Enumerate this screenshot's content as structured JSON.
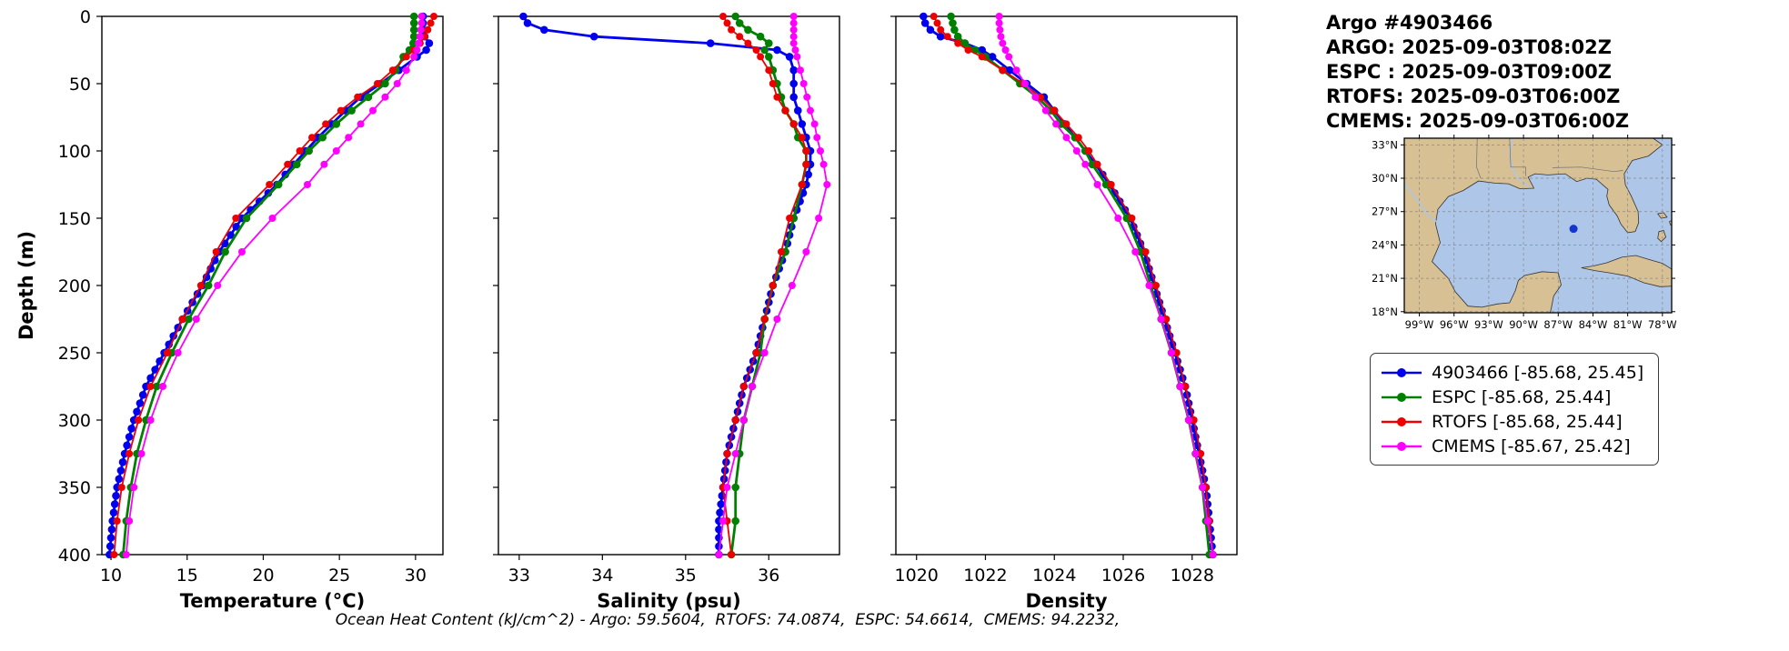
{
  "title_block": {
    "lines": [
      "Argo #4903466",
      "ARGO: 2025-09-03T08:02Z",
      "ESPC : 2025-09-03T09:00Z",
      "RTOFS: 2025-09-03T06:00Z",
      "CMEMS: 2025-09-03T06:00Z"
    ]
  },
  "caption": "Ocean Heat Content (kJ/cm^2) - Argo: 59.5604,  RTOFS: 74.0874,  ESPC: 54.6614,  CMEMS: 94.2232,",
  "legend": {
    "items": [
      {
        "label": "4903466 [-85.68, 25.45]",
        "color": "#0000ee"
      },
      {
        "label": "ESPC [-85.68, 25.44]",
        "color": "#008000"
      },
      {
        "label": "RTOFS [-85.68, 25.44]",
        "color": "#ee0000"
      },
      {
        "label": "CMEMS [-85.67, 25.42]",
        "color": "#ff00ff"
      }
    ]
  },
  "chart_data": {
    "type": "line",
    "orientation": "depth-profile",
    "depth_axis": {
      "label": "Depth (m)",
      "range": [
        0,
        400
      ],
      "ticks": [
        0,
        50,
        100,
        150,
        200,
        250,
        300,
        350,
        400
      ]
    },
    "depths": [
      0,
      5,
      10,
      15,
      20,
      25,
      30,
      40,
      50,
      60,
      70,
      80,
      90,
      100,
      110,
      125,
      150,
      175,
      200,
      225,
      250,
      275,
      300,
      325,
      350,
      375,
      400
    ],
    "series_meta": [
      {
        "name": "4903466",
        "color": "#0000ee",
        "lw": 2.8,
        "r": 4.3,
        "dense": true
      },
      {
        "name": "ESPC",
        "color": "#008000",
        "lw": 2.8,
        "r": 4.3,
        "dense": false
      },
      {
        "name": "RTOFS",
        "color": "#ee0000",
        "lw": 1.8,
        "r": 4.0,
        "dense": false
      },
      {
        "name": "CMEMS",
        "color": "#ff00ff",
        "lw": 1.8,
        "r": 4.0,
        "dense": false
      }
    ],
    "panels": [
      {
        "xlabel": "Temperature (°C)",
        "xticks": [
          10,
          15,
          20,
          25,
          30
        ],
        "xlim": [
          9.4,
          31.8
        ],
        "series": {
          "4903466": [
            30.5,
            30.5,
            30.5,
            30.6,
            30.9,
            30.7,
            30.1,
            28.9,
            27.7,
            26.4,
            25.4,
            24.5,
            23.6,
            22.8,
            22.0,
            20.9,
            18.6,
            17.1,
            16.0,
            14.7,
            13.5,
            12.3,
            11.5,
            10.9,
            10.4,
            10.1,
            9.9
          ],
          "ESPC": [
            29.9,
            29.9,
            29.9,
            29.9,
            29.85,
            29.6,
            29.2,
            28.7,
            28.0,
            26.9,
            25.8,
            24.8,
            23.9,
            23.0,
            22.2,
            21.0,
            18.9,
            17.5,
            16.4,
            15.1,
            14.0,
            13.0,
            12.3,
            11.7,
            11.3,
            11.0,
            10.8
          ],
          "RTOFS": [
            31.2,
            31.0,
            30.8,
            30.6,
            30.3,
            29.9,
            29.4,
            28.5,
            27.5,
            26.2,
            25.1,
            24.1,
            23.2,
            22.4,
            21.6,
            20.4,
            18.2,
            16.9,
            15.9,
            14.7,
            13.7,
            12.6,
            11.8,
            11.2,
            10.7,
            10.4,
            10.2
          ],
          "CMEMS": [
            30.4,
            30.4,
            30.35,
            30.3,
            30.2,
            30.1,
            29.9,
            29.4,
            28.8,
            28.0,
            27.2,
            26.4,
            25.6,
            24.8,
            24.0,
            22.9,
            20.6,
            18.6,
            17.0,
            15.6,
            14.4,
            13.4,
            12.6,
            12.0,
            11.5,
            11.2,
            11.0
          ]
        }
      },
      {
        "xlabel": "Salinity (psu)",
        "xticks": [
          33,
          34,
          35,
          36
        ],
        "xlim": [
          32.75,
          36.85
        ],
        "series": {
          "4903466": [
            33.05,
            33.1,
            33.3,
            33.9,
            35.3,
            36.1,
            36.25,
            36.3,
            36.3,
            36.3,
            36.35,
            36.4,
            36.45,
            36.5,
            36.5,
            36.45,
            36.3,
            36.2,
            36.05,
            35.95,
            35.85,
            35.7,
            35.6,
            35.5,
            35.45,
            35.4,
            35.4
          ],
          "ESPC": [
            35.6,
            35.65,
            35.75,
            35.9,
            36.0,
            35.95,
            36.0,
            36.05,
            36.1,
            36.15,
            36.2,
            36.3,
            36.35,
            36.45,
            36.45,
            36.4,
            36.3,
            36.2,
            36.05,
            35.95,
            35.9,
            35.8,
            35.7,
            35.65,
            35.6,
            35.6,
            35.55
          ],
          "RTOFS": [
            35.45,
            35.5,
            35.55,
            35.65,
            35.75,
            35.85,
            35.9,
            36.0,
            36.05,
            36.1,
            36.2,
            36.3,
            36.4,
            36.45,
            36.45,
            36.4,
            36.25,
            36.15,
            36.05,
            35.95,
            35.85,
            35.7,
            35.6,
            35.5,
            35.45,
            35.5,
            35.55
          ],
          "CMEMS": [
            36.3,
            36.3,
            36.3,
            36.3,
            36.3,
            36.32,
            36.34,
            36.38,
            36.42,
            36.46,
            36.5,
            36.55,
            36.58,
            36.62,
            36.66,
            36.7,
            36.6,
            36.45,
            36.28,
            36.1,
            35.95,
            35.8,
            35.7,
            35.6,
            35.5,
            35.45,
            35.4
          ]
        }
      },
      {
        "xlabel": "Density",
        "xticks": [
          1020,
          1022,
          1024,
          1026,
          1028
        ],
        "xlim": [
          1019.4,
          1029.3
        ],
        "series": {
          "4903466": [
            1020.2,
            1020.25,
            1020.4,
            1020.7,
            1021.4,
            1021.9,
            1022.2,
            1022.7,
            1023.2,
            1023.7,
            1024.0,
            1024.3,
            1024.6,
            1024.9,
            1025.2,
            1025.6,
            1026.2,
            1026.6,
            1026.9,
            1027.2,
            1027.5,
            1027.8,
            1028.0,
            1028.2,
            1028.4,
            1028.5,
            1028.6
          ],
          "ESPC": [
            1021.0,
            1021.05,
            1021.1,
            1021.2,
            1021.4,
            1021.7,
            1022.0,
            1022.5,
            1023.0,
            1023.5,
            1023.9,
            1024.2,
            1024.6,
            1024.9,
            1025.1,
            1025.5,
            1026.1,
            1026.5,
            1026.8,
            1027.1,
            1027.4,
            1027.65,
            1027.9,
            1028.1,
            1028.3,
            1028.4,
            1028.5
          ],
          "RTOFS": [
            1020.5,
            1020.6,
            1020.7,
            1020.9,
            1021.2,
            1021.5,
            1021.9,
            1022.5,
            1023.1,
            1023.6,
            1024.0,
            1024.35,
            1024.7,
            1025.0,
            1025.25,
            1025.65,
            1026.25,
            1026.65,
            1026.95,
            1027.25,
            1027.55,
            1027.8,
            1028.05,
            1028.25,
            1028.4,
            1028.5,
            1028.6
          ],
          "CMEMS": [
            1022.4,
            1022.4,
            1022.42,
            1022.45,
            1022.5,
            1022.58,
            1022.68,
            1022.9,
            1023.15,
            1023.45,
            1023.75,
            1024.05,
            1024.35,
            1024.65,
            1024.9,
            1025.25,
            1025.85,
            1026.35,
            1026.75,
            1027.1,
            1027.4,
            1027.65,
            1027.9,
            1028.1,
            1028.3,
            1028.45,
            1028.6
          ]
        }
      }
    ]
  },
  "map": {
    "extent": {
      "lon": [
        -100.3,
        -77.2
      ],
      "lat": [
        17.9,
        33.6
      ]
    },
    "lat_ticks": [
      33,
      30,
      27,
      24,
      21,
      18
    ],
    "lat_tick_labels": [
      "33°N",
      "30°N",
      "27°N",
      "24°N",
      "21°N",
      "18°N"
    ],
    "lon_ticks": [
      -99,
      -96,
      -93,
      -90,
      -87,
      -84,
      -81,
      -78
    ],
    "lon_tick_labels": [
      "99°W",
      "96°W",
      "93°W",
      "90°W",
      "87°W",
      "84°W",
      "81°W",
      "78°W"
    ],
    "marker": {
      "lon": -85.68,
      "lat": 25.45,
      "color": "#1535cc"
    },
    "land_color": "#d8c095",
    "water_color": "#aec6e8",
    "river_color": "#aec6e8",
    "border_color": "#6f6f6f",
    "polygons": {
      "mainland": [
        [
          -100.3,
          33.6
        ],
        [
          -78.8,
          33.6
        ],
        [
          -78.0,
          33.0
        ],
        [
          -79.2,
          32.0
        ],
        [
          -80.6,
          31.6
        ],
        [
          -81.3,
          30.4
        ],
        [
          -81.2,
          29.4
        ],
        [
          -80.7,
          28.4
        ],
        [
          -80.1,
          27.0
        ],
        [
          -80.05,
          26.0
        ],
        [
          -80.35,
          25.2
        ],
        [
          -81.0,
          25.1
        ],
        [
          -81.6,
          25.9
        ],
        [
          -81.9,
          26.6
        ],
        [
          -82.6,
          27.6
        ],
        [
          -82.8,
          28.4
        ],
        [
          -82.7,
          29.0
        ],
        [
          -83.7,
          29.9
        ],
        [
          -84.5,
          30.0
        ],
        [
          -85.4,
          29.7
        ],
        [
          -86.4,
          30.4
        ],
        [
          -87.9,
          30.3
        ],
        [
          -89.0,
          30.4
        ],
        [
          -89.6,
          30.1
        ],
        [
          -89.1,
          29.1
        ],
        [
          -90.3,
          29.05
        ],
        [
          -91.3,
          29.5
        ],
        [
          -92.4,
          29.55
        ],
        [
          -93.9,
          29.75
        ],
        [
          -95.2,
          28.9
        ],
        [
          -96.5,
          28.35
        ],
        [
          -97.4,
          27.2
        ],
        [
          -97.6,
          25.9
        ],
        [
          -97.2,
          24.2
        ],
        [
          -97.9,
          22.5
        ],
        [
          -96.5,
          21.0
        ],
        [
          -95.9,
          19.8
        ],
        [
          -94.8,
          18.5
        ],
        [
          -93.6,
          18.4
        ],
        [
          -92.2,
          18.7
        ],
        [
          -91.2,
          18.8
        ],
        [
          -90.7,
          19.9
        ],
        [
          -90.45,
          20.8
        ],
        [
          -89.9,
          21.25
        ],
        [
          -88.4,
          21.6
        ],
        [
          -87.0,
          21.5
        ],
        [
          -86.75,
          20.4
        ],
        [
          -87.4,
          19.4
        ],
        [
          -87.6,
          18.3
        ],
        [
          -87.7,
          17.9
        ],
        [
          -100.3,
          17.9
        ]
      ],
      "cuba": [
        [
          -85.0,
          21.95
        ],
        [
          -84.0,
          22.1
        ],
        [
          -82.8,
          22.4
        ],
        [
          -81.5,
          22.9
        ],
        [
          -80.3,
          23.05
        ],
        [
          -79.2,
          22.7
        ],
        [
          -78.0,
          22.35
        ],
        [
          -77.0,
          21.7
        ],
        [
          -77.0,
          20.3
        ],
        [
          -78.2,
          20.25
        ],
        [
          -79.6,
          20.6
        ],
        [
          -81.0,
          21.2
        ],
        [
          -82.6,
          21.5
        ],
        [
          -83.9,
          21.7
        ]
      ],
      "bahamas1": [
        [
          -78.4,
          26.8
        ],
        [
          -77.9,
          26.9
        ],
        [
          -77.6,
          26.5
        ],
        [
          -78.1,
          26.4
        ]
      ],
      "bahamas2": [
        [
          -78.3,
          25.2
        ],
        [
          -77.9,
          25.3
        ],
        [
          -77.7,
          24.7
        ],
        [
          -78.1,
          24.3
        ],
        [
          -78.4,
          24.6
        ]
      ],
      "bahamas3": [
        [
          -77.4,
          26.1
        ],
        [
          -77.0,
          26.3
        ],
        [
          -76.9,
          25.7
        ],
        [
          -77.3,
          25.8
        ]
      ]
    },
    "rivers": [
      [
        [
          -90.9,
          33.6
        ],
        [
          -91.2,
          32.3
        ],
        [
          -91.0,
          31.0
        ],
        [
          -90.5,
          30.0
        ],
        [
          -89.4,
          29.15
        ]
      ],
      [
        [
          -100.3,
          29.5
        ],
        [
          -99.3,
          28.2
        ],
        [
          -98.2,
          26.6
        ],
        [
          -97.3,
          25.95
        ]
      ]
    ],
    "state_lines": [
      [
        [
          -94.0,
          33.6
        ],
        [
          -94.05,
          31.0
        ],
        [
          -93.7,
          30.0
        ]
      ],
      [
        [
          -91.2,
          33.6
        ],
        [
          -91.1,
          31.0
        ],
        [
          -89.8,
          31.0
        ],
        [
          -89.8,
          30.2
        ]
      ],
      [
        [
          -87.5,
          30.95
        ],
        [
          -85.0,
          31.0
        ],
        [
          -82.2,
          30.6
        ],
        [
          -81.4,
          30.7
        ]
      ]
    ]
  }
}
